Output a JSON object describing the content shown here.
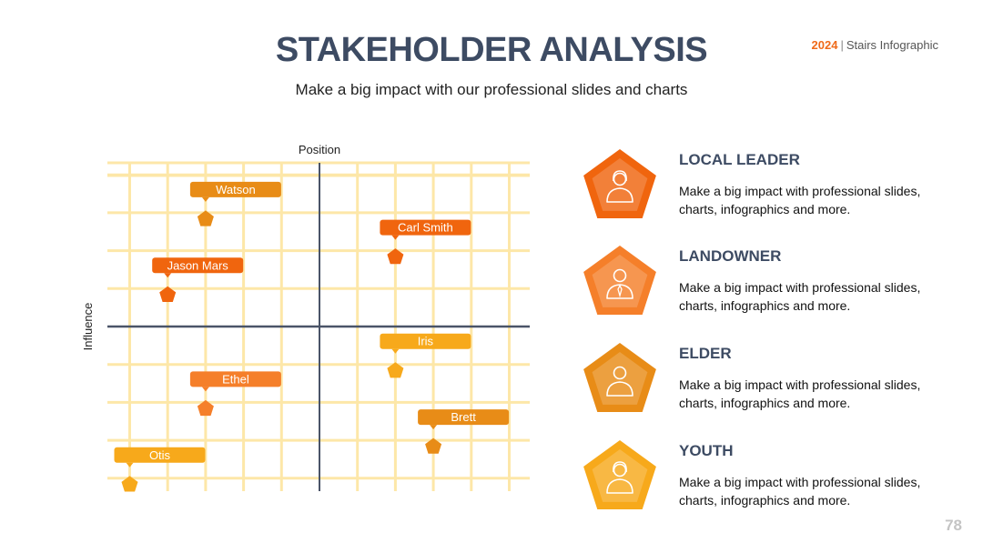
{
  "header": {
    "title": "STAKEHOLDER ANALYSIS",
    "subtitle": "Make a big impact with our professional slides and charts",
    "brand_year": "2024",
    "brand_separator": "|",
    "brand_name": "Stairs Infographic"
  },
  "page_number": "78",
  "chart_data": {
    "type": "scatter",
    "xlabel": "Position",
    "ylabel": "Influence",
    "xlim": [
      -5.5,
      5.5
    ],
    "ylim": [
      -4.5,
      4.5
    ],
    "grid": true,
    "points": [
      {
        "label": "Watson",
        "x": -3,
        "y": 3,
        "color": "#e88c17"
      },
      {
        "label": "Carl Smith",
        "x": 2,
        "y": 2,
        "color": "#f0650e"
      },
      {
        "label": "Jason Mars",
        "x": -4,
        "y": 1,
        "color": "#f0650e"
      },
      {
        "label": "Iris",
        "x": 2,
        "y": -1,
        "color": "#f7a91b"
      },
      {
        "label": "Ethel",
        "x": -3,
        "y": -2,
        "color": "#f57f2a"
      },
      {
        "label": "Brett",
        "x": 3,
        "y": -3,
        "color": "#e88c17"
      },
      {
        "label": "Otis",
        "x": -5,
        "y": -4,
        "color": "#f7a91b"
      }
    ]
  },
  "legend": [
    {
      "title": "LOCAL LEADER",
      "description": "Make a big impact with professional slides, charts, infographics and more.",
      "color": "#f0650e",
      "icon": "female-person-icon"
    },
    {
      "title": "LANDOWNER",
      "description": "Make a big impact with professional slides, charts, infographics and more.",
      "color": "#f57f2a",
      "icon": "male-person-tie-icon"
    },
    {
      "title": "ELDER",
      "description": "Make a big impact with professional slides, charts, infographics and more.",
      "color": "#e88c17",
      "icon": "male-person-icon"
    },
    {
      "title": "YOUTH",
      "description": "Make a big impact with professional slides, charts, infographics and more.",
      "color": "#f7a91b",
      "icon": "female-person-icon"
    }
  ]
}
